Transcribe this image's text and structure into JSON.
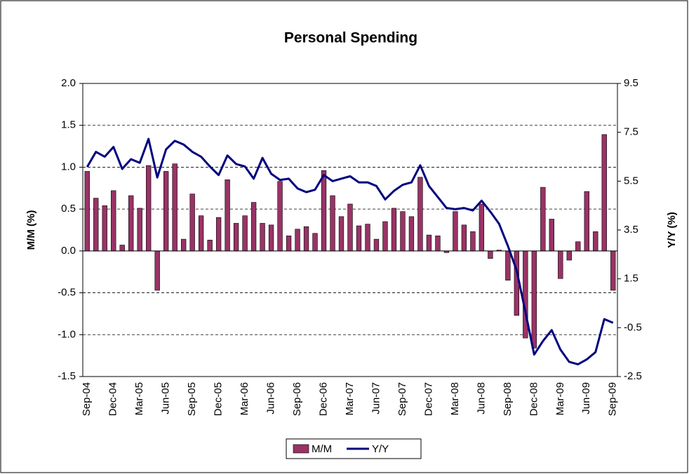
{
  "chart_data": {
    "type": "bar",
    "title": "Personal Spending",
    "y_label": "M/M (%)",
    "y2_label": "Y/Y (%)",
    "categories": [
      "Sep-04",
      null,
      null,
      "Dec-04",
      null,
      null,
      "Mar-05",
      null,
      null,
      "Jun-05",
      null,
      null,
      "Sep-05",
      null,
      null,
      "Dec-05",
      null,
      null,
      "Mar-06",
      null,
      null,
      "Jun-06",
      null,
      null,
      "Sep-06",
      null,
      null,
      "Dec-06",
      null,
      null,
      "Mar-07",
      null,
      null,
      "Jun-07",
      null,
      null,
      "Sep-07",
      null,
      null,
      "Dec-07",
      null,
      null,
      "Mar-08",
      null,
      null,
      "Jun-08",
      null,
      null,
      "Sep-08",
      null,
      null,
      "Dec-08",
      null,
      null,
      "Mar-09",
      null,
      null,
      "Jun-09",
      null,
      null,
      "Sep-09"
    ],
    "series": [
      {
        "name": "M/M",
        "type": "bar",
        "color": "#993366",
        "values": [
          0.95,
          0.63,
          0.54,
          0.72,
          0.07,
          0.66,
          0.51,
          1.02,
          -0.47,
          0.95,
          1.04,
          0.14,
          0.68,
          0.42,
          0.13,
          0.4,
          0.85,
          0.33,
          0.42,
          0.58,
          0.33,
          0.31,
          0.83,
          0.18,
          0.26,
          0.29,
          0.21,
          0.96,
          0.66,
          0.41,
          0.56,
          0.3,
          0.32,
          0.14,
          0.35,
          0.51,
          0.47,
          0.41,
          0.88,
          0.19,
          0.18,
          -0.02,
          0.47,
          0.31,
          0.23,
          0.56,
          -0.09,
          0.01,
          -0.35,
          -0.77,
          -1.04,
          -1.16,
          0.76,
          0.38,
          -0.33,
          -0.11,
          0.11,
          0.71,
          0.23,
          1.39,
          -0.47
        ]
      },
      {
        "name": "Y/Y",
        "type": "line",
        "axis": "y2",
        "color": "#000080",
        "values": [
          6.08,
          6.7,
          6.5,
          6.9,
          6.0,
          6.4,
          6.25,
          7.23,
          5.65,
          6.8,
          7.15,
          7.0,
          6.7,
          6.5,
          6.1,
          5.75,
          6.55,
          6.2,
          6.1,
          5.6,
          6.45,
          5.8,
          5.55,
          5.6,
          5.2,
          5.05,
          5.15,
          5.75,
          5.5,
          5.6,
          5.7,
          5.45,
          5.45,
          5.3,
          4.75,
          5.1,
          5.35,
          5.45,
          6.15,
          5.3,
          4.85,
          4.4,
          4.35,
          4.4,
          4.3,
          4.7,
          4.25,
          3.75,
          2.85,
          1.85,
          0.15,
          -1.6,
          -1.05,
          -0.6,
          -1.4,
          -1.9,
          -2.0,
          -1.8,
          -1.5,
          -0.15,
          -0.3
        ]
      }
    ],
    "ylim": [
      -1.5,
      2.0
    ],
    "yticks": [
      -1.5,
      {
        "value": -1,
        "label": "-1.0"
      },
      -0.5,
      {
        "value": 0,
        "label": "0.0"
      },
      0.5,
      {
        "value": 1,
        "label": "1.0"
      },
      1.5,
      {
        "value": 2,
        "label": "2.0"
      }
    ],
    "y2lim": [
      -2.5,
      9.5
    ],
    "y2ticks": [
      -2.5,
      -0.5,
      1.5,
      3.5,
      5.5,
      7.5,
      9.5
    ],
    "grid": true,
    "legend": "bottom"
  }
}
